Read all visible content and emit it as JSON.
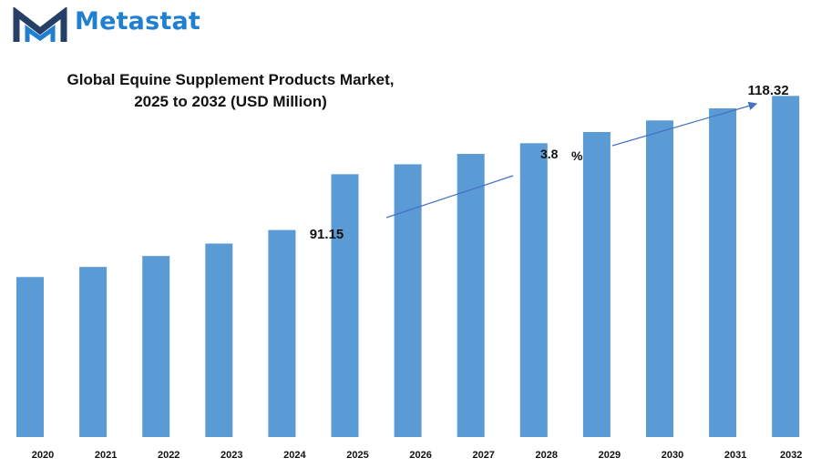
{
  "brand": {
    "name": "Metastat",
    "logo_color": "#253f66",
    "accent": "#1f7fd0"
  },
  "chart_data": {
    "type": "bar",
    "title_line1": "Global Equine Supplement Products Market,",
    "title_line2": "2025 to 2032 (USD Million)",
    "categories": [
      "2020",
      "2021",
      "2022",
      "2023",
      "2024",
      "2025",
      "2026",
      "2027",
      "2028",
      "2029",
      "2030",
      "2031",
      "2032"
    ],
    "values": [
      55.5,
      59.0,
      62.8,
      67.1,
      71.8,
      91.15,
      94.6,
      98.2,
      101.9,
      105.8,
      109.8,
      114.0,
      118.32
    ],
    "ylim": [
      0,
      120
    ],
    "xlabel": "",
    "ylabel": "",
    "bar_color": "#5b9bd5",
    "grid": false,
    "legend": "none",
    "annotations": {
      "start_label": "91.15",
      "end_label": "118.32",
      "cagr_label": "3.8",
      "cagr_unit": "%"
    }
  }
}
